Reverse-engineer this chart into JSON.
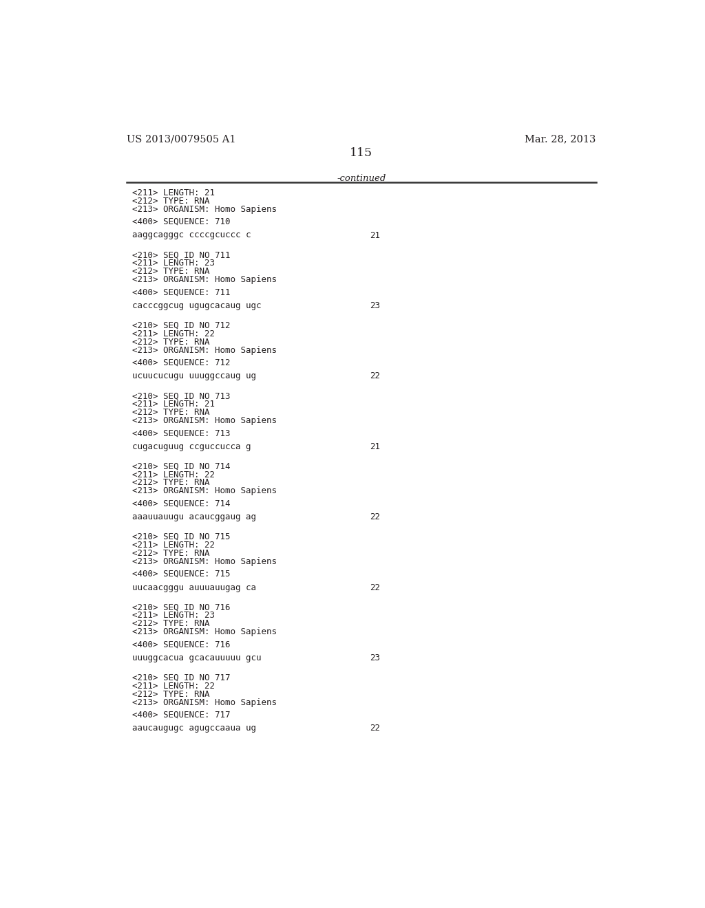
{
  "header_left": "US 2013/0079505 A1",
  "header_right": "Mar. 28, 2013",
  "page_number": "115",
  "continued_label": "-continued",
  "background_color": "#ffffff",
  "text_color": "#231f20",
  "entries": [
    {
      "seq_id": null,
      "fields": [
        "<211> LENGTH: 21",
        "<212> TYPE: RNA",
        "<213> ORGANISM: Homo Sapiens"
      ],
      "seq_label": "<400> SEQUENCE: 710",
      "sequence": "aaggcagggc ccccgcuccc c",
      "length_num": "21"
    },
    {
      "seq_id": "<210> SEQ ID NO 711",
      "fields": [
        "<211> LENGTH: 23",
        "<212> TYPE: RNA",
        "<213> ORGANISM: Homo Sapiens"
      ],
      "seq_label": "<400> SEQUENCE: 711",
      "sequence": "cacccggcug ugugcacaug ugc",
      "length_num": "23"
    },
    {
      "seq_id": "<210> SEQ ID NO 712",
      "fields": [
        "<211> LENGTH: 22",
        "<212> TYPE: RNA",
        "<213> ORGANISM: Homo Sapiens"
      ],
      "seq_label": "<400> SEQUENCE: 712",
      "sequence": "ucuucucugu uuuggccaug ug",
      "length_num": "22"
    },
    {
      "seq_id": "<210> SEQ ID NO 713",
      "fields": [
        "<211> LENGTH: 21",
        "<212> TYPE: RNA",
        "<213> ORGANISM: Homo Sapiens"
      ],
      "seq_label": "<400> SEQUENCE: 713",
      "sequence": "cugacuguug ccguccucca g",
      "length_num": "21"
    },
    {
      "seq_id": "<210> SEQ ID NO 714",
      "fields": [
        "<211> LENGTH: 22",
        "<212> TYPE: RNA",
        "<213> ORGANISM: Homo Sapiens"
      ],
      "seq_label": "<400> SEQUENCE: 714",
      "sequence": "aaauuauugu acaucggaug ag",
      "length_num": "22"
    },
    {
      "seq_id": "<210> SEQ ID NO 715",
      "fields": [
        "<211> LENGTH: 22",
        "<212> TYPE: RNA",
        "<213> ORGANISM: Homo Sapiens"
      ],
      "seq_label": "<400> SEQUENCE: 715",
      "sequence": "uucaacgggu auuuauugag ca",
      "length_num": "22"
    },
    {
      "seq_id": "<210> SEQ ID NO 716",
      "fields": [
        "<211> LENGTH: 23",
        "<212> TYPE: RNA",
        "<213> ORGANISM: Homo Sapiens"
      ],
      "seq_label": "<400> SEQUENCE: 716",
      "sequence": "uuuggcacua gcacauuuuu gcu",
      "length_num": "23"
    },
    {
      "seq_id": "<210> SEQ ID NO 717",
      "fields": [
        "<211> LENGTH: 22",
        "<212> TYPE: RNA",
        "<213> ORGANISM: Homo Sapiens"
      ],
      "seq_label": "<400> SEQUENCE: 717",
      "sequence": "aaucaugugc agugccaaua ug",
      "length_num": "22"
    }
  ]
}
